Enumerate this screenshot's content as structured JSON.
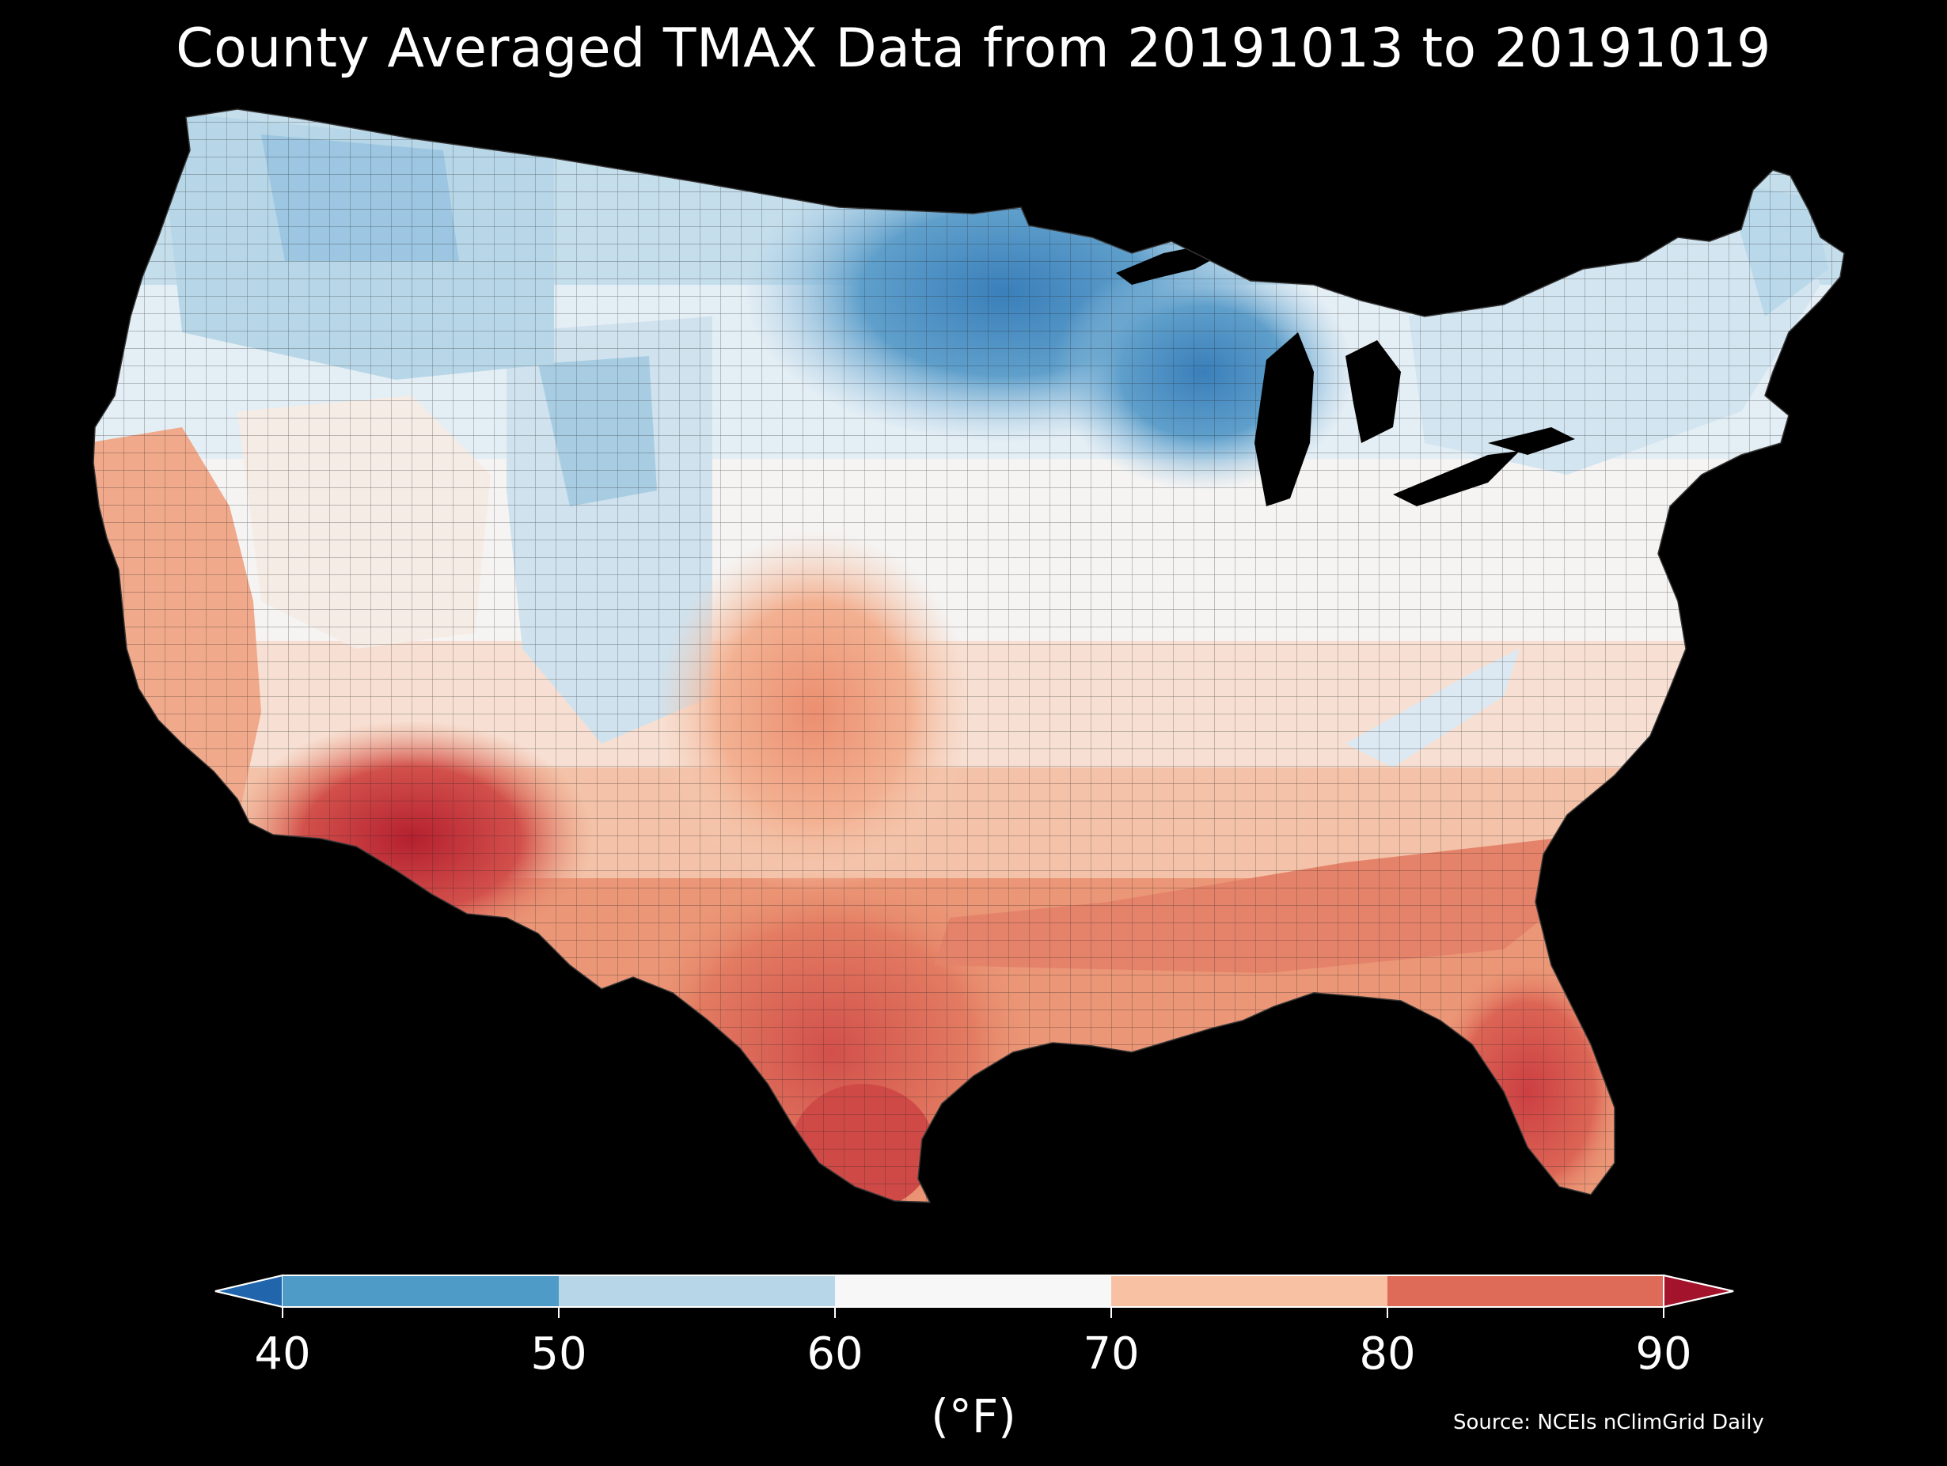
{
  "title": "County Averaged TMAX Data from 20191013 to 20191019",
  "source": "Source: NCEIs nClimGrid Daily",
  "colorbar": {
    "unit": "(°F)",
    "ticks": [
      "40",
      "50",
      "60",
      "70",
      "80",
      "90"
    ],
    "bins": [
      {
        "range": "<40",
        "color": "#2166ac"
      },
      {
        "range": "40-50",
        "color": "#4f9bc7"
      },
      {
        "range": "50-60",
        "color": "#b7d7e8"
      },
      {
        "range": "60-70",
        "color": "#f7f7f7"
      },
      {
        "range": "70-80",
        "color": "#f8c1a4"
      },
      {
        "range": "80-90",
        "color": "#de6a58"
      },
      {
        "range": ">90",
        "color": "#a3132b"
      }
    ]
  },
  "map": {
    "region": "Contiguous United States",
    "unit": "county",
    "variable": "TMAX",
    "colors": {
      "coldest": "#3f86bf",
      "cold": "#7fb5d8",
      "cool": "#c5deec",
      "mild": "#eef3f6",
      "neutral": "#f7f4f1",
      "warm": "#f7cfb8",
      "warmer": "#eb9676",
      "hot": "#d2504b",
      "hottest": "#b5202f",
      "county_line": "#222222",
      "background": "#000000"
    }
  }
}
